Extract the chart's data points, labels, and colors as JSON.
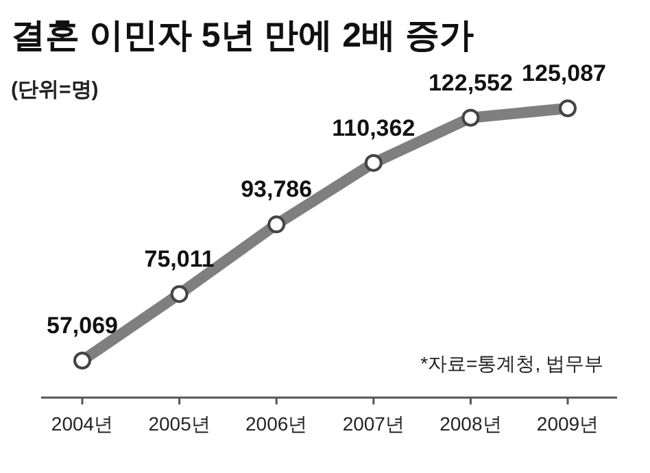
{
  "chart_data": {
    "type": "line",
    "title": "결혼 이민자 5년 만에 2배 증가",
    "subtitle": "(단위=명)",
    "annotations": [
      "*자료=통계청, 법무부"
    ],
    "categories": [
      "2004년",
      "2005년",
      "2006년",
      "2007년",
      "2008년",
      "2009년"
    ],
    "series": [
      {
        "color": "#7f7f7f",
        "values": [
          57069,
          75011,
          93786,
          110362,
          122552,
          125087
        ],
        "value_labels": [
          "57,069",
          "75,011",
          "93,786",
          "110,362",
          "122,552",
          "125,087"
        ]
      }
    ],
    "marker": "circle",
    "line_style": "solid"
  }
}
